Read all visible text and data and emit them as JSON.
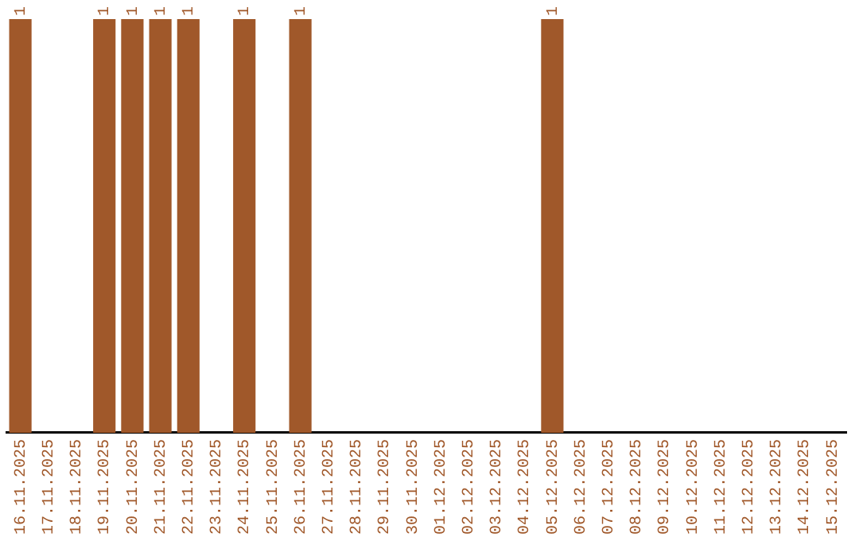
{
  "chart_data": {
    "type": "bar",
    "data_labels": true,
    "grid": false,
    "legend": false,
    "categories": [
      "16.11.2025",
      "17.11.2025",
      "18.11.2025",
      "19.11.2025",
      "20.11.2025",
      "21.11.2025",
      "22.11.2025",
      "23.11.2025",
      "24.11.2025",
      "25.11.2025",
      "26.11.2025",
      "27.11.2025",
      "28.11.2025",
      "29.11.2025",
      "30.11.2025",
      "01.12.2025",
      "02.12.2025",
      "03.12.2025",
      "04.12.2025",
      "05.12.2025",
      "06.12.2025",
      "07.12.2025",
      "08.12.2025",
      "09.12.2025",
      "10.12.2025",
      "11.12.2025",
      "12.12.2025",
      "13.12.2025",
      "14.12.2025",
      "15.12.2025"
    ],
    "values": [
      1,
      null,
      null,
      1,
      1,
      1,
      1,
      null,
      1,
      null,
      1,
      null,
      null,
      null,
      null,
      null,
      null,
      null,
      null,
      1,
      null,
      null,
      null,
      null,
      null,
      null,
      null,
      null,
      null,
      null
    ],
    "color": "#a0582a"
  }
}
